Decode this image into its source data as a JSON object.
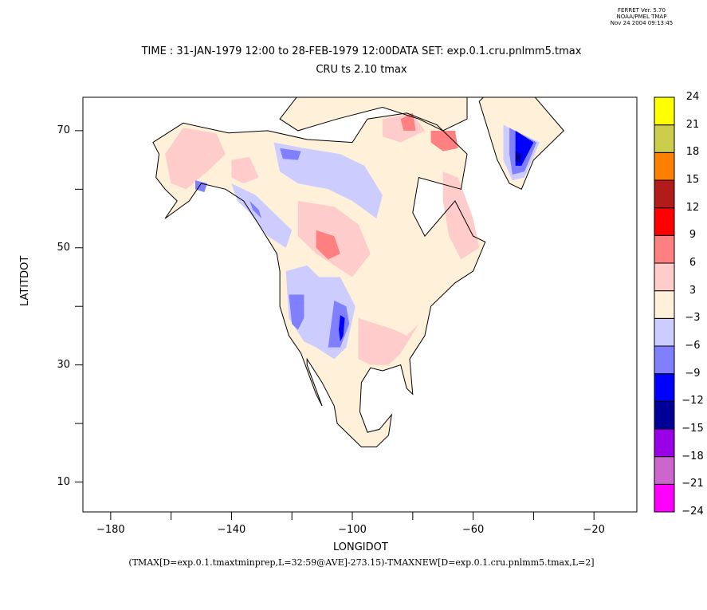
{
  "header": {
    "version": "FERRET Ver. 5.70",
    "org": "NOAA/PMEL TMAP",
    "timestamp": "Nov 24 2004 09:13:45"
  },
  "title": {
    "line1": "TIME : 31-JAN-1979 12:00 to 28-FEB-1979 12:00DATA SET: exp.0.1.cru.pnlmm5.tmax",
    "line2": "CRU ts 2.10 tmax"
  },
  "expression": "(TMAX[D=exp.0.1.tmaxtminprep,L=32:59@AVE]-273.15)-TMAXNEW[D=exp.0.1.cru.pnlmm5.tmax,L=2]",
  "chart_data": {
    "type": "heatmap",
    "title": "CRU ts 2.10 tmax",
    "xlabel": "LONGIDOT",
    "ylabel": "LATITDOT",
    "xlim": [
      -189.2,
      -5.8
    ],
    "ylim": [
      4.9,
      75.7
    ],
    "x_ticks": [
      -180,
      -160,
      -140,
      -120,
      -100,
      -80,
      -60,
      -40,
      -20
    ],
    "x_tick_labels": [
      "-180",
      "",
      "-140",
      "",
      "-100",
      "",
      "-60",
      "",
      "-20"
    ],
    "y_ticks": [
      10,
      20,
      30,
      40,
      50,
      60,
      70
    ],
    "y_tick_labels": [
      "10",
      "",
      "30",
      "",
      "50",
      "",
      "70"
    ],
    "colorbar": {
      "levels": [
        -24,
        -21,
        -18,
        -15,
        -12,
        -9,
        -6,
        -3,
        3,
        6,
        9,
        12,
        15,
        18,
        21,
        24
      ],
      "labels": [
        "-24",
        "-21",
        "-18",
        "-15",
        "-12",
        "-9",
        "-6",
        "-3",
        "3",
        "6",
        "9",
        "12",
        "15",
        "18",
        "21",
        "24"
      ],
      "colors": [
        "#ff00ff",
        "#cc66cc",
        "#9900e6",
        "#000099",
        "#0000ff",
        "#8080ff",
        "#ccccff",
        "#fff0d9",
        "#ffcccc",
        "#ff8080",
        "#ff0000",
        "#b31a1a",
        "#ff8000",
        "#cccc4d",
        "#ffff00"
      ]
    },
    "regions": [
      {
        "name": "north-america-base",
        "class": "-3 to 3",
        "color": "#fff0d9",
        "poly": [
          [
            -166,
            68
          ],
          [
            -156,
            71.3
          ],
          [
            -141,
            69.6
          ],
          [
            -128,
            70
          ],
          [
            -115,
            68.5
          ],
          [
            -100,
            68
          ],
          [
            -95,
            72
          ],
          [
            -82,
            73
          ],
          [
            -72,
            71
          ],
          [
            -62,
            66
          ],
          [
            -64,
            60
          ],
          [
            -78,
            62
          ],
          [
            -80,
            56
          ],
          [
            -76,
            52
          ],
          [
            -66,
            58
          ],
          [
            -60,
            52
          ],
          [
            -56,
            51
          ],
          [
            -60,
            46
          ],
          [
            -66,
            44
          ],
          [
            -70,
            42
          ],
          [
            -74,
            40
          ],
          [
            -76,
            35
          ],
          [
            -81,
            31
          ],
          [
            -80,
            25
          ],
          [
            -82,
            26
          ],
          [
            -84,
            30
          ],
          [
            -90,
            29
          ],
          [
            -94,
            29.5
          ],
          [
            -97,
            27
          ],
          [
            -97.5,
            22
          ],
          [
            -95,
            18.5
          ],
          [
            -91,
            19
          ],
          [
            -87,
            21.5
          ],
          [
            -88,
            18
          ],
          [
            -92,
            16
          ],
          [
            -97,
            16
          ],
          [
            -105,
            20
          ],
          [
            -106,
            23
          ],
          [
            -110,
            27
          ],
          [
            -115,
            31
          ],
          [
            -115,
            30
          ],
          [
            -110,
            23
          ],
          [
            -112,
            25
          ],
          [
            -117,
            32
          ],
          [
            -121,
            35
          ],
          [
            -124,
            40
          ],
          [
            -124,
            46
          ],
          [
            -125,
            49
          ],
          [
            -131,
            54
          ],
          [
            -136,
            58
          ],
          [
            -142,
            60
          ],
          [
            -150,
            61
          ],
          [
            -154,
            58
          ],
          [
            -162,
            55
          ],
          [
            -158,
            58
          ],
          [
            -162,
            60
          ],
          [
            -165,
            62
          ],
          [
            -164,
            66
          ]
        ]
      },
      {
        "name": "arctic-islands-base",
        "class": "-3 to 3",
        "color": "#fff0d9",
        "poly": [
          [
            -124,
            72
          ],
          [
            -118,
            76
          ],
          [
            -100,
            76
          ],
          [
            -85,
            76
          ],
          [
            -75,
            76
          ],
          [
            -62,
            76
          ],
          [
            -62,
            72
          ],
          [
            -70,
            70
          ],
          [
            -78,
            72
          ],
          [
            -90,
            74
          ],
          [
            -105,
            72
          ],
          [
            -118,
            70
          ]
        ]
      },
      {
        "name": "greenland-base",
        "class": "-3 to 3",
        "color": "#fff0d9",
        "poly": [
          [
            -56,
            76
          ],
          [
            -40,
            76
          ],
          [
            -30,
            70
          ],
          [
            -40,
            65
          ],
          [
            -44,
            60
          ],
          [
            -48,
            61
          ],
          [
            -52,
            65
          ],
          [
            -55,
            70
          ],
          [
            -58,
            75
          ]
        ]
      },
      {
        "name": "alaska-warm",
        "class": "3 to 6",
        "color": "#ffcccc",
        "poly": [
          [
            -162,
            66
          ],
          [
            -156,
            70.5
          ],
          [
            -145,
            69.5
          ],
          [
            -142,
            66
          ],
          [
            -148,
            63
          ],
          [
            -155,
            60
          ],
          [
            -160,
            61
          ]
        ]
      },
      {
        "name": "yukon-warm",
        "class": "3 to 6",
        "color": "#ffcccc",
        "poly": [
          [
            -140,
            65
          ],
          [
            -134,
            65.5
          ],
          [
            -131,
            62
          ],
          [
            -136,
            61
          ],
          [
            -140,
            62
          ]
        ]
      },
      {
        "name": "prairies-warm",
        "class": "3 to 6",
        "color": "#ffcccc",
        "poly": [
          [
            -118,
            58
          ],
          [
            -106,
            57
          ],
          [
            -98,
            54
          ],
          [
            -94,
            49
          ],
          [
            -100,
            45
          ],
          [
            -106,
            47
          ],
          [
            -112,
            49
          ],
          [
            -118,
            52
          ]
        ]
      },
      {
        "name": "prairies-hot",
        "class": "6 to 9",
        "color": "#ff8080",
        "poly": [
          [
            -112,
            53
          ],
          [
            -106,
            52
          ],
          [
            -104,
            49
          ],
          [
            -108,
            48
          ],
          [
            -112,
            50
          ]
        ]
      },
      {
        "name": "quebec-warm",
        "class": "3 to 6",
        "color": "#ffcccc",
        "poly": [
          [
            -70,
            63
          ],
          [
            -65,
            62
          ],
          [
            -60,
            55
          ],
          [
            -58,
            50
          ],
          [
            -64,
            48
          ],
          [
            -68,
            52
          ],
          [
            -70,
            58
          ]
        ]
      },
      {
        "name": "se-us-warm",
        "class": "3 to 6",
        "color": "#ffcccc",
        "poly": [
          [
            -98,
            38
          ],
          [
            -92,
            37
          ],
          [
            -86,
            36
          ],
          [
            -82,
            35
          ],
          [
            -78,
            37
          ],
          [
            -84,
            32
          ],
          [
            -88,
            30
          ],
          [
            -94,
            30
          ],
          [
            -98,
            31
          ]
        ]
      },
      {
        "name": "baffin-warm",
        "class": "3 to 6",
        "color": "#ffcccc",
        "poly": [
          [
            -90,
            72
          ],
          [
            -80,
            73
          ],
          [
            -76,
            70
          ],
          [
            -84,
            68
          ],
          [
            -90,
            69
          ]
        ]
      },
      {
        "name": "baffin-hot",
        "class": "6 to 9",
        "color": "#ff8080",
        "poly": [
          [
            -74,
            70
          ],
          [
            -66,
            70
          ],
          [
            -65,
            67
          ],
          [
            -70,
            66.5
          ],
          [
            -74,
            68
          ]
        ]
      },
      {
        "name": "ellesmere-hot",
        "class": "6 to 9",
        "color": "#ff8080",
        "poly": [
          [
            -84,
            72
          ],
          [
            -80,
            73
          ],
          [
            -79,
            70
          ],
          [
            -83,
            70
          ]
        ]
      },
      {
        "name": "nwt-cool",
        "class": "-6 to -3",
        "color": "#ccccff",
        "poly": [
          [
            -126,
            68
          ],
          [
            -116,
            67
          ],
          [
            -104,
            66
          ],
          [
            -96,
            64
          ],
          [
            -90,
            59
          ],
          [
            -92,
            55
          ],
          [
            -100,
            58
          ],
          [
            -108,
            60
          ],
          [
            -118,
            61
          ],
          [
            -124,
            63
          ]
        ]
      },
      {
        "name": "nwt-cold",
        "class": "-9 to -6",
        "color": "#8080ff",
        "poly": [
          [
            -124,
            67
          ],
          [
            -117,
            66.5
          ],
          [
            -118,
            65
          ],
          [
            -123,
            65.2
          ]
        ]
      },
      {
        "name": "bc-cool",
        "class": "-6 to -3",
        "color": "#ccccff",
        "poly": [
          [
            -140,
            61
          ],
          [
            -132,
            59
          ],
          [
            -126,
            56
          ],
          [
            -120,
            53
          ],
          [
            -122,
            50
          ],
          [
            -128,
            52
          ],
          [
            -134,
            56
          ],
          [
            -138,
            58
          ]
        ]
      },
      {
        "name": "bc-cold",
        "class": "-9 to -6",
        "color": "#8080ff",
        "poly": [
          [
            -134,
            58
          ],
          [
            -131,
            56.5
          ],
          [
            -130,
            55
          ],
          [
            -133,
            56.5
          ]
        ]
      },
      {
        "name": "anchorage-cold",
        "class": "-9 to -6",
        "color": "#8080ff",
        "poly": [
          [
            -152,
            61.5
          ],
          [
            -148,
            61
          ],
          [
            -149,
            59.5
          ],
          [
            -152,
            60
          ]
        ]
      },
      {
        "name": "great-basin-cool",
        "class": "-6 to -3",
        "color": "#ccccff",
        "poly": [
          [
            -122,
            46
          ],
          [
            -115,
            47
          ],
          [
            -111,
            45
          ],
          [
            -104,
            45
          ],
          [
            -99,
            40
          ],
          [
            -102,
            33
          ],
          [
            -106,
            31
          ],
          [
            -112,
            33
          ],
          [
            -116,
            34
          ],
          [
            -121,
            38
          ]
        ]
      },
      {
        "name": "nevada-cold",
        "class": "-9 to -6",
        "color": "#8080ff",
        "poly": [
          [
            -121,
            42
          ],
          [
            -116,
            42
          ],
          [
            -116,
            38
          ],
          [
            -118,
            36
          ],
          [
            -120,
            37
          ]
        ]
      },
      {
        "name": "colorado-cold",
        "class": "-9 to -6",
        "color": "#8080ff",
        "poly": [
          [
            -106,
            41
          ],
          [
            -102,
            40
          ],
          [
            -101,
            37
          ],
          [
            -104,
            33
          ],
          [
            -108,
            33
          ],
          [
            -107,
            37
          ]
        ]
      },
      {
        "name": "colorado-vcold",
        "class": "-12 to -9",
        "color": "#0000ff",
        "poly": [
          [
            -104,
            38.5
          ],
          [
            -102.5,
            38
          ],
          [
            -103,
            35
          ],
          [
            -104,
            34
          ],
          [
            -104.5,
            36
          ]
        ]
      },
      {
        "name": "greenland-cool",
        "class": "-6 to -3",
        "color": "#ccccff",
        "poly": [
          [
            -50,
            71
          ],
          [
            -38,
            68
          ],
          [
            -43,
            62
          ],
          [
            -47,
            61.5
          ],
          [
            -50,
            65
          ]
        ]
      },
      {
        "name": "greenland-cold",
        "class": "-9 to -6",
        "color": "#8080ff",
        "poly": [
          [
            -48,
            70.5
          ],
          [
            -39,
            68
          ],
          [
            -43,
            63
          ],
          [
            -47,
            62.5
          ],
          [
            -48,
            66
          ]
        ]
      },
      {
        "name": "greenland-vcold",
        "class": "-12 to -9",
        "color": "#0000ff",
        "poly": [
          [
            -46,
            70
          ],
          [
            -40,
            68
          ],
          [
            -44,
            64
          ],
          [
            -46,
            64
          ]
        ]
      },
      {
        "name": "greenland-dark",
        "class": "-15 to -12",
        "color": "#000099",
        "poly": [
          [
            -46,
            66.5
          ],
          [
            -44,
            66
          ],
          [
            -44.5,
            64.5
          ],
          [
            -46,
            64.8
          ]
        ]
      }
    ]
  }
}
